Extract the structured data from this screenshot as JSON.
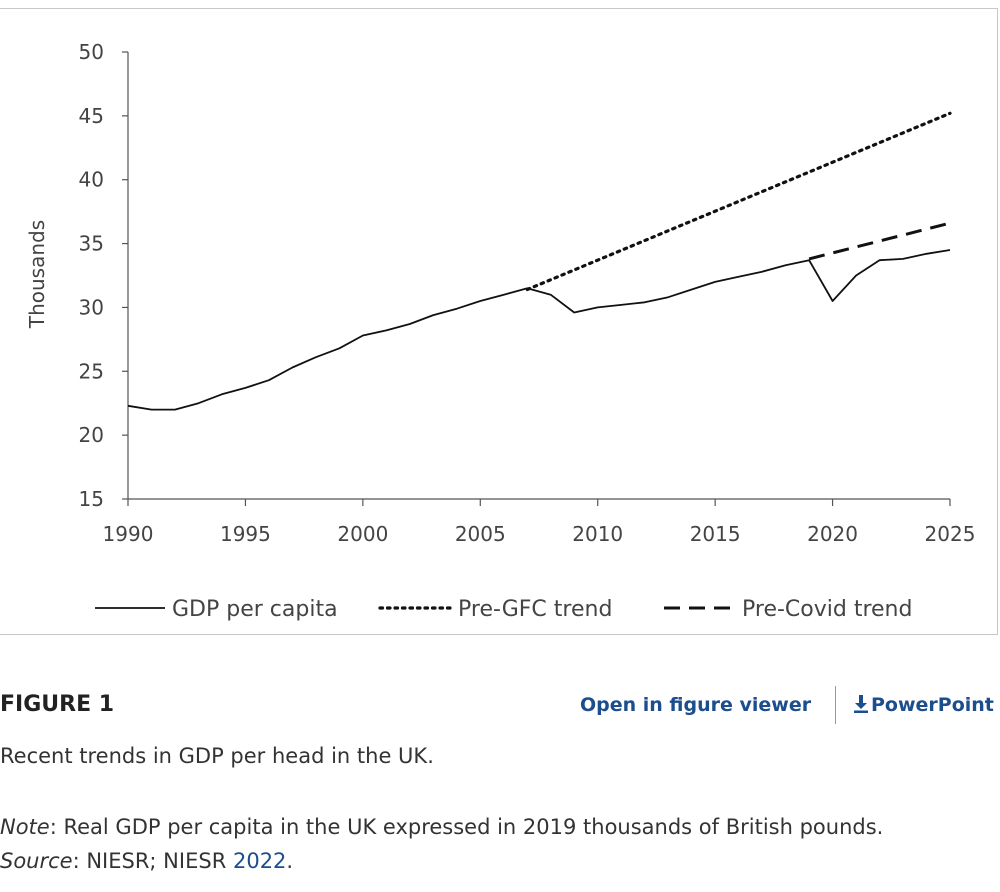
{
  "chart_data": {
    "type": "line",
    "title": "",
    "xlabel": "",
    "ylabel": "Thousands",
    "xlim": [
      1990,
      2025
    ],
    "ylim": [
      15,
      50
    ],
    "xticks": [
      1990,
      1995,
      2000,
      2005,
      2010,
      2015,
      2020,
      2025
    ],
    "yticks": [
      15,
      20,
      25,
      30,
      35,
      40,
      45,
      50
    ],
    "series": [
      {
        "name": "GDP per capita",
        "style": "solid",
        "x": [
          1990,
          1991,
          1992,
          1993,
          1994,
          1995,
          1996,
          1997,
          1998,
          1999,
          2000,
          2001,
          2002,
          2003,
          2004,
          2005,
          2006,
          2007,
          2008,
          2009,
          2010,
          2011,
          2012,
          2013,
          2014,
          2015,
          2016,
          2017,
          2018,
          2019,
          2020,
          2021,
          2022,
          2023,
          2024,
          2025
        ],
        "values": [
          22.3,
          22.0,
          22.0,
          22.5,
          23.2,
          23.7,
          24.3,
          25.3,
          26.1,
          26.8,
          27.8,
          28.2,
          28.7,
          29.4,
          29.9,
          30.5,
          31.0,
          31.5,
          31.0,
          29.6,
          30.0,
          30.2,
          30.4,
          30.8,
          31.4,
          32.0,
          32.4,
          32.8,
          33.3,
          33.7,
          30.5,
          32.5,
          33.7,
          33.8,
          34.2,
          34.5
        ]
      },
      {
        "name": "Pre-GFC trend",
        "style": "dotted",
        "x": [
          2007,
          2025
        ],
        "values": [
          31.4,
          45.2
        ]
      },
      {
        "name": "Pre-Covid trend",
        "style": "dashed",
        "x": [
          2019,
          2025
        ],
        "values": [
          33.8,
          36.6
        ]
      }
    ],
    "legend": [
      "GDP per capita",
      "Pre-GFC trend",
      "Pre-Covid trend"
    ]
  },
  "caption": {
    "figure_label": "FIGURE 1",
    "open_viewer": "Open in figure viewer",
    "powerpoint": "PowerPoint",
    "title_text": "Recent trends in GDP per head in the UK.",
    "note_label": "Note",
    "note_text": ": Real GDP per capita in the UK expressed in 2019 thousands of British pounds. ",
    "source_label": "Source",
    "source_text": ": NIESR; NIESR ",
    "source_link": "2022",
    "source_end": "."
  },
  "colors": {
    "line": "#111111",
    "axis": "#555555",
    "link": "#1c4d8c"
  }
}
